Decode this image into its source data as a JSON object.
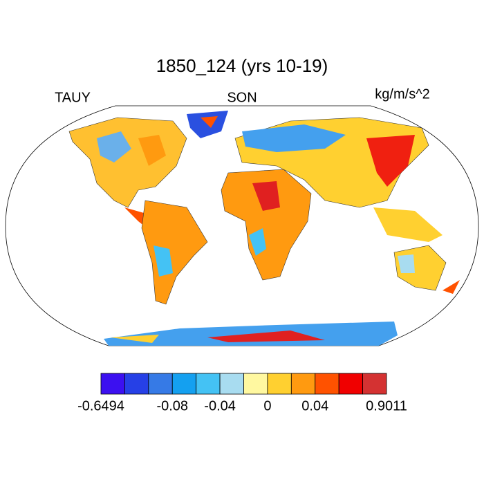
{
  "map": {
    "title": "1850_124 (yrs 10-19)",
    "left_label": "TAUY",
    "center_label": "SON",
    "right_label": "kg/m/s^2",
    "colorbar": {
      "colors": [
        "#3c10f0",
        "#2640e6",
        "#367ae6",
        "#14a0f0",
        "#44c2f4",
        "#a8dcf0",
        "#fff8a0",
        "#ffd030",
        "#ff9a10",
        "#ff5200",
        "#f00000",
        "#d43232"
      ],
      "labels": [
        -0.6494,
        -0.08,
        -0.04,
        0,
        0.04,
        0.9011
      ]
    }
  }
}
